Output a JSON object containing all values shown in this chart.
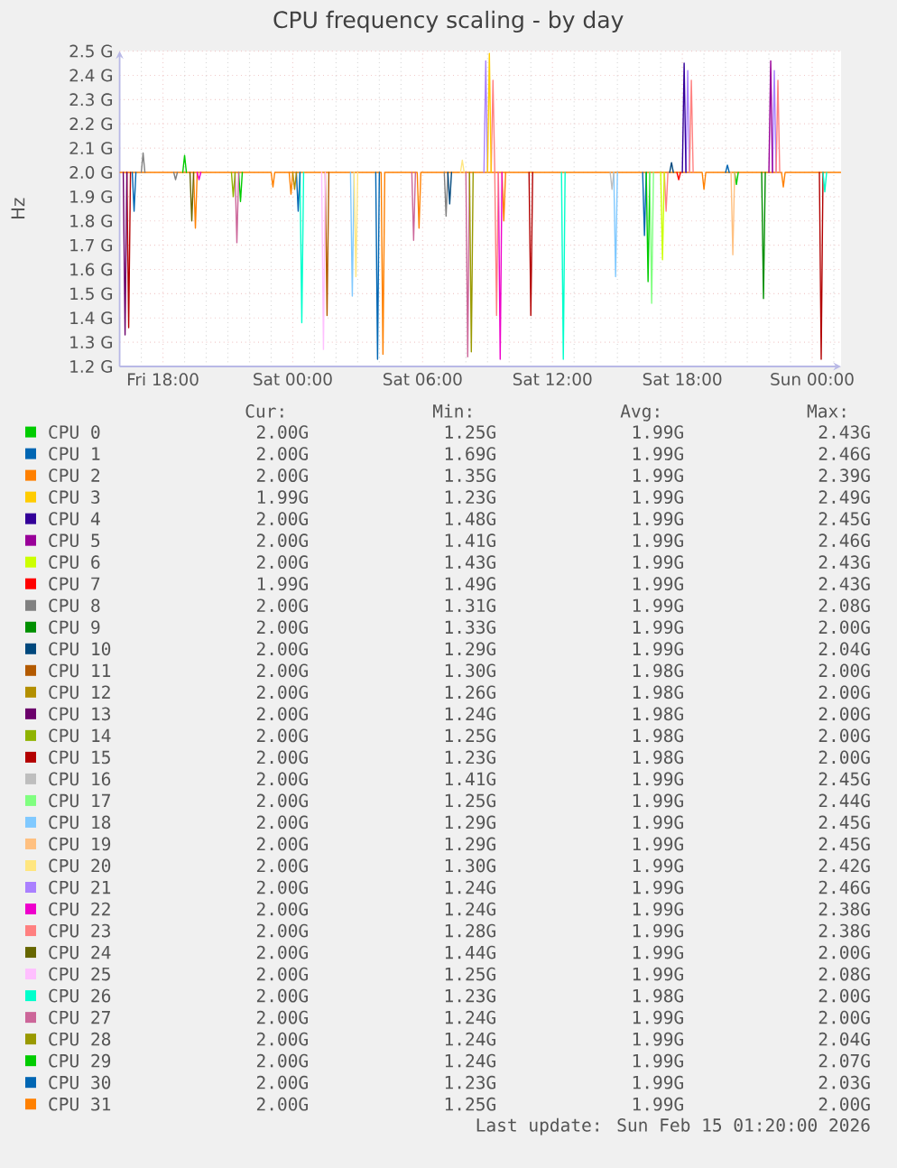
{
  "chart_data": {
    "type": "line",
    "title": "CPU frequency scaling - by day",
    "ylabel": "Hz",
    "xlim": [
      "2026-02-13T16:00",
      "2026-02-15T01:20"
    ],
    "xticks": [
      {
        "value": "2026-02-13T17:00",
        "label": null
      },
      {
        "value": "2026-02-13T18:00",
        "label": "Fri 18:00"
      },
      {
        "value": "2026-02-13T19:00",
        "label": null
      },
      {
        "value": "2026-02-13T20:00",
        "label": null
      },
      {
        "value": "2026-02-13T21:00",
        "label": null
      },
      {
        "value": "2026-02-13T22:00",
        "label": null
      },
      {
        "value": "2026-02-13T23:00",
        "label": null
      },
      {
        "value": "2026-02-14T00:00",
        "label": "Sat 00:00"
      },
      {
        "value": "2026-02-14T01:00",
        "label": null
      },
      {
        "value": "2026-02-14T02:00",
        "label": null
      },
      {
        "value": "2026-02-14T03:00",
        "label": null
      },
      {
        "value": "2026-02-14T04:00",
        "label": null
      },
      {
        "value": "2026-02-14T05:00",
        "label": null
      },
      {
        "value": "2026-02-14T06:00",
        "label": "Sat 06:00"
      },
      {
        "value": "2026-02-14T07:00",
        "label": null
      },
      {
        "value": "2026-02-14T08:00",
        "label": null
      },
      {
        "value": "2026-02-14T09:00",
        "label": null
      },
      {
        "value": "2026-02-14T10:00",
        "label": null
      },
      {
        "value": "2026-02-14T11:00",
        "label": null
      },
      {
        "value": "2026-02-14T12:00",
        "label": "Sat 12:00"
      },
      {
        "value": "2026-02-14T13:00",
        "label": null
      },
      {
        "value": "2026-02-14T14:00",
        "label": null
      },
      {
        "value": "2026-02-14T15:00",
        "label": null
      },
      {
        "value": "2026-02-14T16:00",
        "label": null
      },
      {
        "value": "2026-02-14T17:00",
        "label": null
      },
      {
        "value": "2026-02-14T18:00",
        "label": "Sat 18:00"
      },
      {
        "value": "2026-02-14T19:00",
        "label": null
      },
      {
        "value": "2026-02-14T20:00",
        "label": null
      },
      {
        "value": "2026-02-14T21:00",
        "label": null
      },
      {
        "value": "2026-02-14T22:00",
        "label": null
      },
      {
        "value": "2026-02-14T23:00",
        "label": null
      },
      {
        "value": "2026-02-15T00:00",
        "label": "Sun 00:00"
      },
      {
        "value": "2026-02-15T01:00",
        "label": null
      }
    ],
    "ylim": [
      1.2,
      2.5
    ],
    "yticks": [
      {
        "value": 1.2,
        "label": "1.2 G"
      },
      {
        "value": 1.3,
        "label": "1.3 G"
      },
      {
        "value": 1.4,
        "label": "1.4 G"
      },
      {
        "value": 1.5,
        "label": "1.5 G"
      },
      {
        "value": 1.6,
        "label": "1.6 G"
      },
      {
        "value": 1.7,
        "label": "1.7 G"
      },
      {
        "value": 1.8,
        "label": "1.8 G"
      },
      {
        "value": 1.9,
        "label": "1.9 G"
      },
      {
        "value": 2.0,
        "label": "2.0 G"
      },
      {
        "value": 2.1,
        "label": "2.1 G"
      },
      {
        "value": 2.2,
        "label": "2.2 G"
      },
      {
        "value": 2.3,
        "label": "2.3 G"
      },
      {
        "value": 2.4,
        "label": "2.4 G"
      },
      {
        "value": 2.5,
        "label": "2.5 G"
      }
    ],
    "grid": true,
    "legend": "bottom",
    "series": [
      {
        "name": "CPU 0",
        "color": "#00cc00",
        "x": [
          "2026-02-14T16:20",
          "2026-02-14T16:25",
          "2026-02-14T16:30"
        ],
        "values": [
          2.0,
          1.55,
          2.0
        ]
      },
      {
        "name": "CPU 1",
        "color": "#0066b3",
        "x": [
          "2026-02-13T16:35",
          "2026-02-13T16:40",
          "2026-02-13T16:45"
        ],
        "values": [
          2.0,
          1.84,
          2.0
        ]
      },
      {
        "name": "CPU 2",
        "color": "#ff8000",
        "x": [
          "2026-02-13T19:25",
          "2026-02-13T19:30",
          "2026-02-13T19:35",
          "2026-02-13T19:40",
          "2026-02-13T23:50",
          "2026-02-13T23:55",
          "2026-02-14T00:00",
          "2026-02-14T00:05",
          "2026-02-14T09:40",
          "2026-02-14T09:45",
          "2026-02-14T09:50"
        ],
        "values": [
          2.0,
          1.77,
          2.0,
          null,
          2.0,
          1.91,
          2.0,
          null,
          2.0,
          1.8,
          2.0
        ]
      },
      {
        "name": "CPU 3",
        "color": "#ffcc00",
        "x": [
          "2026-02-14T09:00",
          "2026-02-14T09:05",
          "2026-02-14T09:10"
        ],
        "values": [
          2.0,
          2.49,
          2.0
        ]
      },
      {
        "name": "CPU 4",
        "color": "#330099",
        "x": [
          "2026-02-14T18:00",
          "2026-02-14T18:05",
          "2026-02-14T18:10"
        ],
        "values": [
          2.0,
          2.45,
          2.0
        ]
      },
      {
        "name": "CPU 5",
        "color": "#990099",
        "x": [
          "2026-02-14T22:00",
          "2026-02-14T22:05",
          "2026-02-14T22:10"
        ],
        "values": [
          2.0,
          2.46,
          2.0
        ]
      },
      {
        "name": "CPU 6",
        "color": "#ccff00",
        "x": [
          "2026-02-14T17:00",
          "2026-02-14T17:05",
          "2026-02-14T17:10"
        ],
        "values": [
          2.0,
          1.64,
          2.0
        ]
      },
      {
        "name": "CPU 7",
        "color": "#ff0000",
        "x": [
          "2026-02-14T17:45",
          "2026-02-14T17:50",
          "2026-02-14T17:55"
        ],
        "values": [
          2.0,
          1.97,
          2.0
        ]
      },
      {
        "name": "CPU 8",
        "color": "#808080",
        "x": [
          "2026-02-13T17:00",
          "2026-02-13T17:05",
          "2026-02-13T17:10",
          "2026-02-13T17:15",
          "2026-02-13T18:30",
          "2026-02-13T18:35",
          "2026-02-13T18:40",
          "2026-02-13T18:45",
          "2026-02-14T07:00",
          "2026-02-14T07:05",
          "2026-02-14T07:10"
        ],
        "values": [
          2.0,
          2.08,
          2.0,
          null,
          2.0,
          1.97,
          2.0,
          null,
          2.0,
          1.82,
          2.0
        ]
      },
      {
        "name": "CPU 9",
        "color": "#008f00",
        "x": [
          "2026-02-14T21:40",
          "2026-02-14T21:45",
          "2026-02-14T21:50"
        ],
        "values": [
          2.0,
          1.48,
          2.0
        ]
      },
      {
        "name": "CPU 10",
        "color": "#00487d",
        "x": [
          "2026-02-14T07:10",
          "2026-02-14T07:15",
          "2026-02-14T07:20",
          "2026-02-14T07:25",
          "2026-02-14T17:25",
          "2026-02-14T17:30",
          "2026-02-14T17:35"
        ],
        "values": [
          2.0,
          1.87,
          2.0,
          null,
          2.0,
          2.04,
          2.0
        ]
      },
      {
        "name": "CPU 11",
        "color": "#b35a00",
        "x": [
          "2026-02-14T01:30",
          "2026-02-14T01:35",
          "2026-02-14T01:40"
        ],
        "values": [
          2.0,
          1.41,
          2.0
        ]
      },
      {
        "name": "CPU 12",
        "color": "#b38f00",
        "x": [
          "2026-02-14T00:00",
          "2026-02-14T00:05",
          "2026-02-14T00:10"
        ],
        "values": [
          2.0,
          1.93,
          2.0
        ]
      },
      {
        "name": "CPU 13",
        "color": "#6b006b",
        "x": [
          "2026-02-13T16:10",
          "2026-02-13T16:15",
          "2026-02-13T16:20"
        ],
        "values": [
          2.0,
          1.33,
          2.0
        ]
      },
      {
        "name": "CPU 14",
        "color": "#8fb300",
        "x": [
          "2026-02-13T21:10",
          "2026-02-13T21:15",
          "2026-02-13T21:20"
        ],
        "values": [
          2.0,
          1.9,
          2.0
        ]
      },
      {
        "name": "CPU 15",
        "color": "#b30000",
        "x": [
          "2026-02-13T16:20",
          "2026-02-13T16:25",
          "2026-02-13T16:30",
          "2026-02-13T16:35",
          "2026-02-14T10:55",
          "2026-02-14T11:00",
          "2026-02-14T11:05",
          "2026-02-14T11:10",
          "2026-02-15T00:20",
          "2026-02-15T00:25",
          "2026-02-15T00:30"
        ],
        "values": [
          2.0,
          1.36,
          2.0,
          null,
          2.0,
          1.41,
          2.0,
          null,
          2.0,
          1.23,
          2.0
        ]
      },
      {
        "name": "CPU 16",
        "color": "#bebebe",
        "x": [
          "2026-02-14T14:40",
          "2026-02-14T14:45",
          "2026-02-14T14:50"
        ],
        "values": [
          2.0,
          1.93,
          2.0
        ]
      },
      {
        "name": "CPU 17",
        "color": "#80ff80",
        "x": [
          "2026-02-14T16:30",
          "2026-02-14T16:35",
          "2026-02-14T16:40"
        ],
        "values": [
          2.0,
          1.46,
          2.0
        ]
      },
      {
        "name": "CPU 18",
        "color": "#80c9ff",
        "x": [
          "2026-02-14T02:40",
          "2026-02-14T02:45",
          "2026-02-14T02:50",
          "2026-02-14T02:55",
          "2026-02-14T14:50",
          "2026-02-14T14:55",
          "2026-02-14T15:00"
        ],
        "values": [
          2.0,
          1.49,
          2.0,
          null,
          2.0,
          1.57,
          2.0
        ]
      },
      {
        "name": "CPU 19",
        "color": "#ffc080",
        "x": [
          "2026-02-14T20:15",
          "2026-02-14T20:20",
          "2026-02-14T20:25"
        ],
        "values": [
          2.0,
          1.66,
          2.0
        ]
      },
      {
        "name": "CPU 20",
        "color": "#ffe680",
        "x": [
          "2026-02-14T02:50",
          "2026-02-14T02:55",
          "2026-02-14T03:00",
          "2026-02-14T03:05",
          "2026-02-14T07:45",
          "2026-02-14T07:50",
          "2026-02-14T07:55"
        ],
        "values": [
          2.0,
          1.57,
          2.0,
          null,
          2.0,
          2.05,
          2.0
        ]
      },
      {
        "name": "CPU 21",
        "color": "#aa80ff",
        "x": [
          "2026-02-14T08:50",
          "2026-02-14T08:55",
          "2026-02-14T09:00",
          "2026-02-14T09:05",
          "2026-02-14T18:10",
          "2026-02-14T18:15",
          "2026-02-14T18:20",
          "2026-02-14T18:25",
          "2026-02-14T22:10",
          "2026-02-14T22:15",
          "2026-02-14T22:20"
        ],
        "values": [
          2.0,
          2.46,
          2.0,
          null,
          2.0,
          2.42,
          2.0,
          null,
          2.0,
          2.42,
          2.0
        ]
      },
      {
        "name": "CPU 22",
        "color": "#ee00cc",
        "x": [
          "2026-02-13T19:35",
          "2026-02-13T19:40",
          "2026-02-13T19:45",
          "2026-02-13T19:50",
          "2026-02-14T09:30",
          "2026-02-14T09:35",
          "2026-02-14T09:40"
        ],
        "values": [
          2.0,
          1.97,
          2.0,
          null,
          2.0,
          1.23,
          2.0
        ]
      },
      {
        "name": "CPU 23",
        "color": "#ff8080",
        "x": [
          "2026-02-14T09:10",
          "2026-02-14T09:15",
          "2026-02-14T09:20",
          "2026-02-14T09:25",
          "2026-02-14T09:30",
          "2026-02-14T09:35",
          "2026-02-14T17:10",
          "2026-02-14T17:15",
          "2026-02-14T17:20",
          "2026-02-14T17:25",
          "2026-02-14T18:20",
          "2026-02-14T18:25",
          "2026-02-14T18:30",
          "2026-02-14T18:35",
          "2026-02-14T22:20",
          "2026-02-14T22:25",
          "2026-02-14T22:30"
        ],
        "values": [
          2.0,
          2.38,
          2.0,
          1.41,
          2.0,
          null,
          2.0,
          1.84,
          2.0,
          null,
          2.0,
          2.38,
          2.0,
          null,
          2.0,
          2.38,
          2.0
        ]
      },
      {
        "name": "CPU 24",
        "color": "#666600",
        "x": [
          "2026-02-13T19:15",
          "2026-02-13T19:20",
          "2026-02-13T19:25"
        ],
        "values": [
          2.0,
          1.8,
          2.0
        ]
      },
      {
        "name": "CPU 25",
        "color": "#ffbfff",
        "x": [
          "2026-02-14T01:20",
          "2026-02-14T01:25",
          "2026-02-14T01:30"
        ],
        "values": [
          2.0,
          1.27,
          2.0
        ]
      },
      {
        "name": "CPU 26",
        "color": "#00ffcc",
        "x": [
          "2026-02-14T00:20",
          "2026-02-14T00:25",
          "2026-02-14T00:30",
          "2026-02-14T00:35",
          "2026-02-14T12:25",
          "2026-02-14T12:30",
          "2026-02-14T12:35",
          "2026-02-14T12:40",
          "2026-02-15T00:30",
          "2026-02-15T00:35",
          "2026-02-15T00:40"
        ],
        "values": [
          2.0,
          1.38,
          2.0,
          null,
          2.0,
          1.23,
          2.0,
          null,
          2.0,
          1.92,
          2.0
        ]
      },
      {
        "name": "CPU 27",
        "color": "#cc6699",
        "x": [
          "2026-02-13T21:20",
          "2026-02-13T21:25",
          "2026-02-13T21:30",
          "2026-02-13T21:35",
          "2026-02-14T05:30",
          "2026-02-14T05:35",
          "2026-02-14T05:40",
          "2026-02-14T05:45",
          "2026-02-14T08:00",
          "2026-02-14T08:05",
          "2026-02-14T08:10"
        ],
        "values": [
          2.0,
          1.71,
          2.0,
          null,
          2.0,
          1.72,
          2.0,
          null,
          2.0,
          1.24,
          2.0
        ]
      },
      {
        "name": "CPU 28",
        "color": "#999900",
        "x": [
          "2026-02-14T08:10",
          "2026-02-14T08:15",
          "2026-02-14T08:20"
        ],
        "values": [
          2.0,
          1.26,
          2.0
        ]
      },
      {
        "name": "CPU 29",
        "color": "#00cc00",
        "x": [
          "2026-02-13T18:55",
          "2026-02-13T19:00",
          "2026-02-13T19:05",
          "2026-02-13T19:10",
          "2026-02-13T21:30",
          "2026-02-13T21:35",
          "2026-02-13T21:40",
          "2026-02-13T21:45",
          "2026-02-14T20:25",
          "2026-02-14T20:30",
          "2026-02-14T20:35"
        ],
        "values": [
          2.0,
          2.07,
          2.0,
          null,
          2.0,
          1.88,
          2.0,
          null,
          2.0,
          1.95,
          2.0
        ]
      },
      {
        "name": "CPU 30",
        "color": "#0066b3",
        "x": [
          "2026-02-14T00:10",
          "2026-02-14T00:15",
          "2026-02-14T00:20",
          "2026-02-14T00:25",
          "2026-02-14T03:50",
          "2026-02-14T03:55",
          "2026-02-14T04:00",
          "2026-02-14T04:05",
          "2026-02-14T16:10",
          "2026-02-14T16:15",
          "2026-02-14T16:20",
          "2026-02-14T16:25",
          "2026-02-14T20:00",
          "2026-02-14T20:05",
          "2026-02-14T20:10"
        ],
        "values": [
          2.0,
          1.84,
          2.0,
          null,
          2.0,
          1.23,
          2.0,
          null,
          2.0,
          1.74,
          2.0,
          null,
          2.0,
          2.03,
          2.0
        ]
      },
      {
        "name": "CPU 31",
        "color": "#ff8000",
        "x": [
          "2026-02-13T16:00",
          "2026-02-13T23:00",
          "2026-02-13T23:05",
          "2026-02-13T23:10",
          "2026-02-14T04:05",
          "2026-02-14T04:10",
          "2026-02-14T04:15",
          "2026-02-14T05:45",
          "2026-02-14T05:50",
          "2026-02-14T05:55",
          "2026-02-14T18:55",
          "2026-02-14T19:00",
          "2026-02-14T19:05",
          "2026-02-14T22:35",
          "2026-02-14T22:40",
          "2026-02-14T22:45",
          "2026-02-15T01:20"
        ],
        "values": [
          2.0,
          2.0,
          1.94,
          2.0,
          2.0,
          1.25,
          2.0,
          2.0,
          1.77,
          2.0,
          2.0,
          1.93,
          2.0,
          2.0,
          1.94,
          2.0,
          2.0
        ]
      }
    ],
    "annotations": [
      "Cur:",
      "Min:",
      "Avg:",
      "Max:",
      "2.00G",
      "1.25G",
      "1.99G",
      "2.43G",
      "2.00G",
      "1.69G",
      "1.99G",
      "2.46G",
      "2.00G",
      "1.35G",
      "1.99G",
      "2.39G",
      "1.99G",
      "1.23G",
      "1.99G",
      "2.49G",
      "2.00G",
      "1.48G",
      "1.99G",
      "2.45G",
      "2.00G",
      "1.41G",
      "1.99G",
      "2.46G",
      "2.00G",
      "1.43G",
      "1.99G",
      "2.43G",
      "1.99G",
      "1.49G",
      "1.99G",
      "2.43G",
      "2.00G",
      "1.31G",
      "1.99G",
      "2.08G",
      "2.00G",
      "1.33G",
      "1.99G",
      "2.00G",
      "2.00G",
      "1.29G",
      "1.99G",
      "2.04G",
      "2.00G",
      "1.30G",
      "1.98G",
      "2.00G",
      "2.00G",
      "1.26G",
      "1.98G",
      "2.00G",
      "2.00G",
      "1.24G",
      "1.98G",
      "2.00G",
      "2.00G",
      "1.25G",
      "1.98G",
      "2.00G",
      "2.00G",
      "1.23G",
      "1.98G",
      "2.00G",
      "2.00G",
      "1.41G",
      "1.99G",
      "2.45G",
      "2.00G",
      "1.25G",
      "1.99G",
      "2.44G",
      "2.00G",
      "1.29G",
      "1.99G",
      "2.45G",
      "2.00G",
      "1.29G",
      "1.99G",
      "2.45G",
      "2.00G",
      "1.30G",
      "1.99G",
      "2.42G",
      "2.00G",
      "1.24G",
      "1.99G",
      "2.46G",
      "2.00G",
      "1.24G",
      "1.99G",
      "2.38G",
      "2.00G",
      "1.28G",
      "1.99G",
      "2.38G",
      "2.00G",
      "1.44G",
      "1.99G",
      "2.00G",
      "2.00G",
      "1.25G",
      "1.99G",
      "2.08G",
      "2.00G",
      "1.23G",
      "1.98G",
      "2.00G",
      "2.00G",
      "1.24G",
      "1.99G",
      "2.00G",
      "2.00G",
      "1.24G",
      "1.99G",
      "2.04G",
      "2.00G",
      "1.24G",
      "1.99G",
      "2.07G",
      "2.00G",
      "1.23G",
      "1.99G",
      "2.03G",
      "2.00G",
      "1.25G",
      "1.99G",
      "2.00G",
      "Last update: Sun Feb 15 01:20:00 2026"
    ]
  }
}
